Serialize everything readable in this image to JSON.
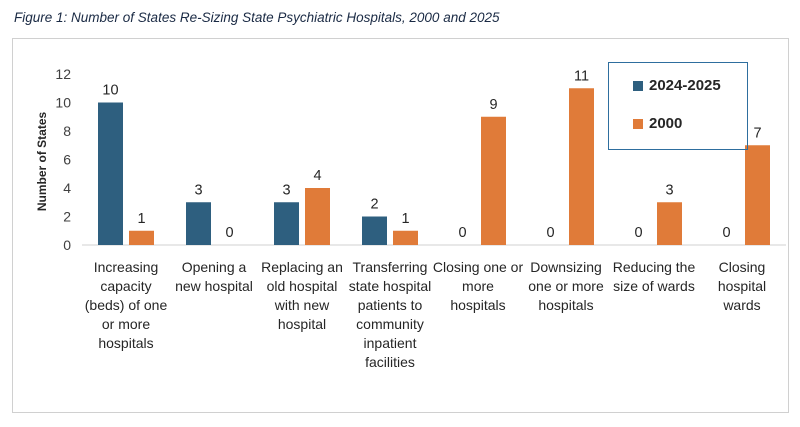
{
  "figure_title": "Figure 1: Number of States Re-Sizing State Psychiatric Hospitals, 2000 and 2025",
  "colors": {
    "series_2024": "#2e5f7f",
    "series_2000": "#e07b39",
    "legend_border": "#2e6e9e"
  },
  "chart_data": {
    "type": "bar",
    "title": "",
    "xlabel": "",
    "ylabel": "Number of States",
    "ylim": [
      0,
      12
    ],
    "yticks": [
      0,
      2,
      4,
      6,
      8,
      10,
      12
    ],
    "grid": false,
    "legend_position": "top-right",
    "categories": [
      [
        "Increasing",
        "capacity",
        "(beds) of one",
        "or more",
        "hospitals"
      ],
      [
        "Opening a",
        "new hospital"
      ],
      [
        "Replacing an",
        "old hospital",
        "with new",
        "hospital"
      ],
      [
        "Transferring",
        "state hospital",
        "patients to",
        "community",
        "inpatient",
        "facilities"
      ],
      [
        "Closing one or",
        "more",
        "hospitals"
      ],
      [
        "Downsizing",
        "one or more",
        "hospitals"
      ],
      [
        "Reducing the",
        "size of wards"
      ],
      [
        "Closing",
        "hospital",
        "wards"
      ]
    ],
    "series": [
      {
        "name": "2024-2025",
        "values": [
          10,
          3,
          3,
          2,
          0,
          0,
          0,
          0
        ]
      },
      {
        "name": "2000",
        "values": [
          1,
          0,
          4,
          1,
          9,
          11,
          3,
          7
        ]
      }
    ]
  }
}
